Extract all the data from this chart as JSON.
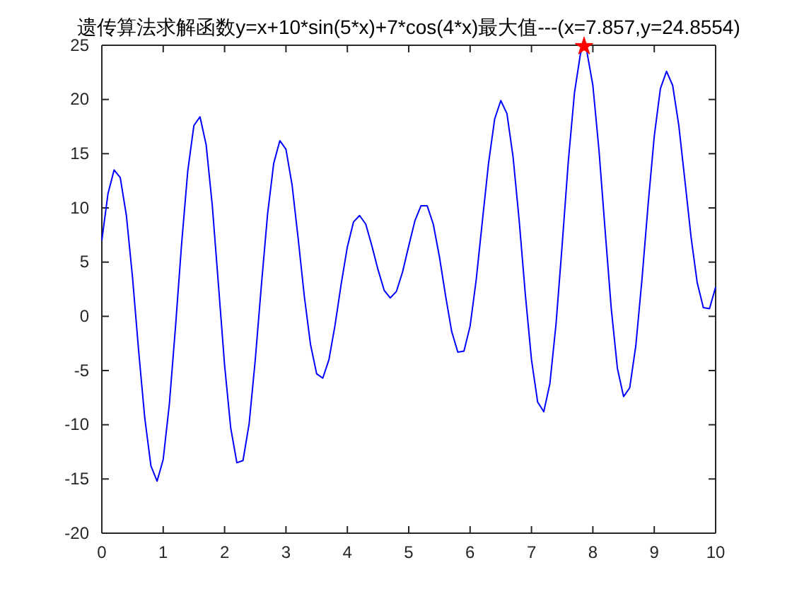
{
  "chart_data": {
    "type": "line",
    "title": "遗传算法求解函数y=x+10*sin(5*x)+7*cos(4*x)最大值---(x=7.857,y=24.8554)",
    "xlim": [
      0,
      10
    ],
    "ylim": [
      -20,
      25
    ],
    "xticks": [
      0,
      1,
      2,
      3,
      4,
      5,
      6,
      7,
      8,
      9,
      10
    ],
    "yticks": [
      -20,
      -15,
      -10,
      -5,
      0,
      5,
      10,
      15,
      20,
      25
    ],
    "series": [
      {
        "type": "line",
        "color": "#0000ff",
        "marker": "none",
        "x": [
          0,
          0.1,
          0.2,
          0.3,
          0.4,
          0.5,
          0.6,
          0.7,
          0.8,
          0.9,
          1,
          1.1,
          1.2,
          1.3,
          1.4,
          1.5,
          1.6,
          1.7,
          1.8,
          1.9,
          2,
          2.1,
          2.2,
          2.3,
          2.4,
          2.5,
          2.6,
          2.7,
          2.8,
          2.9,
          3,
          3.1,
          3.2,
          3.3,
          3.4,
          3.5,
          3.6,
          3.7,
          3.8,
          3.9,
          4,
          4.1,
          4.2,
          4.3,
          4.4,
          4.5,
          4.6,
          4.7,
          4.8,
          4.9,
          5,
          5.1,
          5.2,
          5.3,
          5.4,
          5.5,
          5.6,
          5.7,
          5.8,
          5.9,
          6,
          6.1,
          6.2,
          6.3,
          6.4,
          6.5,
          6.6,
          6.7,
          6.8,
          6.9,
          7,
          7.1,
          7.2,
          7.3,
          7.4,
          7.5,
          7.6,
          7.7,
          7.8,
          7.857,
          7.9,
          8,
          8.1,
          8.2,
          8.3,
          8.4,
          8.5,
          8.6,
          8.7,
          8.8,
          8.9,
          9,
          9.1,
          9.2,
          9.3,
          9.4,
          9.5,
          9.6,
          9.7,
          9.8,
          9.9,
          10
        ],
        "values": [
          7.0,
          11.3,
          13.5,
          12.8,
          9.3,
          3.6,
          -3.2,
          -9.4,
          -13.8,
          -15.2,
          -13.2,
          -8.1,
          -1.0,
          6.7,
          13.4,
          17.6,
          18.4,
          15.8,
          10.2,
          2.9,
          -4.5,
          -10.3,
          -13.5,
          -13.3,
          -9.9,
          -4.0,
          2.9,
          9.4,
          14.1,
          16.2,
          15.4,
          12.1,
          7.1,
          1.8,
          -2.6,
          -5.3,
          -5.7,
          -4.0,
          -0.8,
          3.0,
          6.4,
          8.7,
          9.3,
          8.5,
          6.5,
          4.3,
          2.4,
          1.7,
          2.3,
          4.1,
          6.5,
          8.8,
          10.2,
          10.2,
          8.5,
          5.5,
          1.9,
          -1.4,
          -3.3,
          -3.2,
          -0.9,
          3.4,
          8.8,
          14.1,
          18.2,
          19.9,
          18.7,
          14.7,
          8.8,
          2.0,
          -4.0,
          -7.9,
          -8.8,
          -6.2,
          -0.7,
          6.6,
          14.3,
          20.6,
          24.3,
          24.9,
          24.5,
          21.3,
          15.3,
          7.9,
          0.7,
          -4.8,
          -7.4,
          -6.6,
          -2.7,
          3.4,
          10.3,
          16.6,
          21.0,
          22.6,
          21.3,
          17.6,
          12.5,
          7.3,
          3.1,
          0.8,
          0.7,
          2.7
        ]
      },
      {
        "type": "scatter",
        "color": "#ff0000",
        "marker": "star",
        "x": [
          7.857
        ],
        "values": [
          24.9
        ]
      }
    ]
  }
}
